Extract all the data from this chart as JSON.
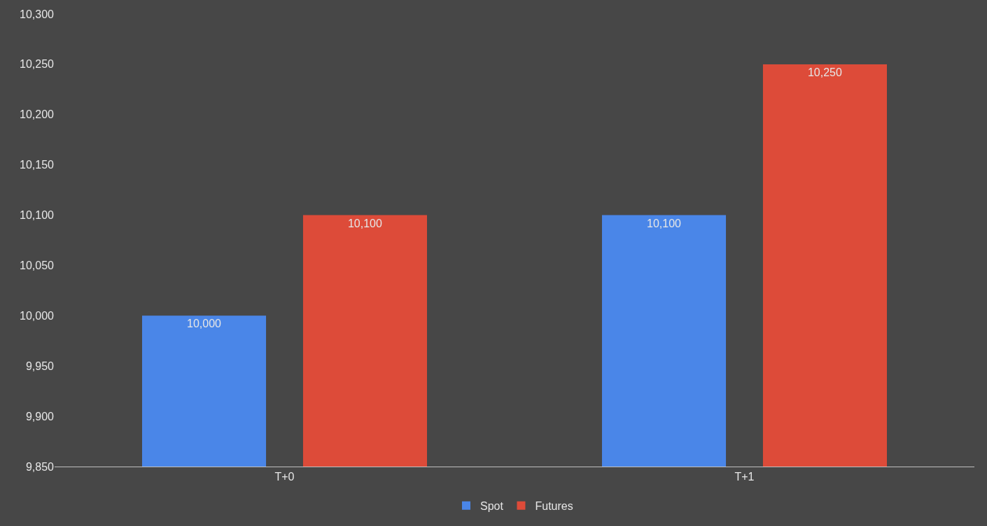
{
  "chart_data": {
    "type": "bar",
    "categories": [
      "T+0",
      "T+1"
    ],
    "series": [
      {
        "name": "Spot",
        "color": "#4a86e8",
        "values": [
          10000,
          10100
        ],
        "value_labels": [
          "10,000",
          "10,100"
        ]
      },
      {
        "name": "Futures",
        "color": "#dd4b39",
        "values": [
          10100,
          10250
        ],
        "value_labels": [
          "10,100",
          "10,250"
        ]
      }
    ],
    "ylim": [
      9850,
      10300
    ],
    "yticks": [
      {
        "value": 9850,
        "label": "9,850"
      },
      {
        "value": 9900,
        "label": "9,900"
      },
      {
        "value": 9950,
        "label": "9,950"
      },
      {
        "value": 10000,
        "label": "10,000"
      },
      {
        "value": 10050,
        "label": "10,050"
      },
      {
        "value": 10100,
        "label": "10,100"
      },
      {
        "value": 10150,
        "label": "10,150"
      },
      {
        "value": 10200,
        "label": "10,200"
      },
      {
        "value": 10250,
        "label": "10,250"
      },
      {
        "value": 10300,
        "label": "10,300"
      }
    ],
    "grid": false,
    "legend": "bottom"
  }
}
